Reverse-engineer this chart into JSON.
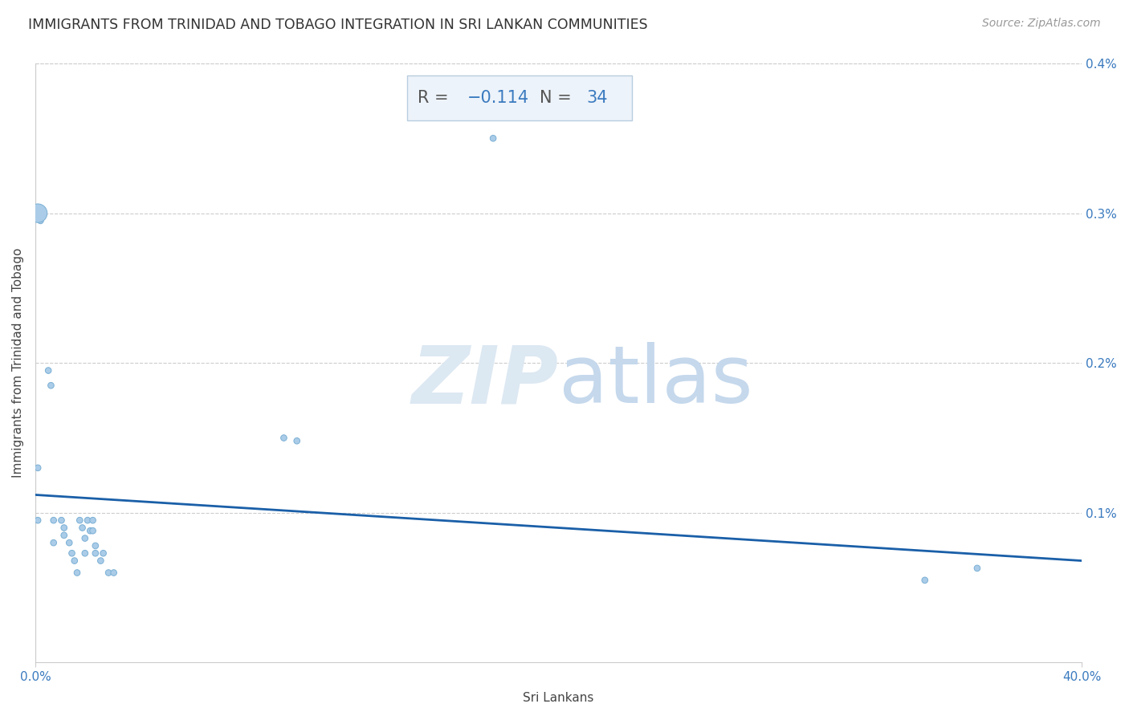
{
  "title": "IMMIGRANTS FROM TRINIDAD AND TOBAGO INTEGRATION IN SRI LANKAN COMMUNITIES",
  "source": "Source: ZipAtlas.com",
  "xlabel": "Sri Lankans",
  "ylabel": "Immigrants from Trinidad and Tobago",
  "R": -0.114,
  "N": 34,
  "xlim": [
    0.0,
    0.4
  ],
  "ylim": [
    0.0,
    0.4
  ],
  "scatter_x": [
    0.001,
    0.001,
    0.002,
    0.005,
    0.006,
    0.007,
    0.007,
    0.01,
    0.011,
    0.011,
    0.013,
    0.014,
    0.015,
    0.016,
    0.017,
    0.018,
    0.019,
    0.019,
    0.02,
    0.021,
    0.022,
    0.022,
    0.023,
    0.023,
    0.025,
    0.026,
    0.028,
    0.03,
    0.095,
    0.1,
    0.175,
    0.34,
    0.36,
    0.001
  ],
  "scatter_y": [
    0.13,
    0.095,
    0.295,
    0.195,
    0.185,
    0.095,
    0.08,
    0.095,
    0.09,
    0.085,
    0.08,
    0.073,
    0.068,
    0.06,
    0.095,
    0.09,
    0.083,
    0.073,
    0.095,
    0.088,
    0.095,
    0.088,
    0.078,
    0.073,
    0.068,
    0.073,
    0.06,
    0.06,
    0.15,
    0.148,
    0.35,
    0.055,
    0.063,
    0.3
  ],
  "scatter_sizes": [
    30,
    30,
    30,
    30,
    30,
    30,
    30,
    30,
    30,
    30,
    30,
    30,
    30,
    30,
    30,
    30,
    30,
    30,
    30,
    30,
    30,
    30,
    30,
    30,
    30,
    30,
    30,
    30,
    30,
    30,
    30,
    30,
    30,
    280
  ],
  "scatter_color": "#aacce8",
  "scatter_edge_color": "#7aafd4",
  "trend_color": "#1a5fa8",
  "trend_start_x": 0.0,
  "trend_start_y": 0.112,
  "trend_end_x": 0.4,
  "trend_end_y": 0.068,
  "grid_color": "#cccccc",
  "grid_linestyle": "--",
  "background_color": "#ffffff",
  "watermark_ZIP_color": "#dce8f2",
  "watermark_atlas_color": "#c5d8ec",
  "box_facecolor": "#edf3fa",
  "box_edgecolor": "#b8cde0",
  "R_text_color": "#555555",
  "val_text_color": "#3a7abf",
  "title_color": "#333333",
  "source_color": "#999999",
  "ylabel_color": "#444444",
  "xlabel_color": "#444444",
  "tick_color": "#3a7abf",
  "title_fontsize": 12.5,
  "source_fontsize": 10,
  "axis_label_fontsize": 11,
  "tick_fontsize": 11,
  "stat_fontsize": 15
}
